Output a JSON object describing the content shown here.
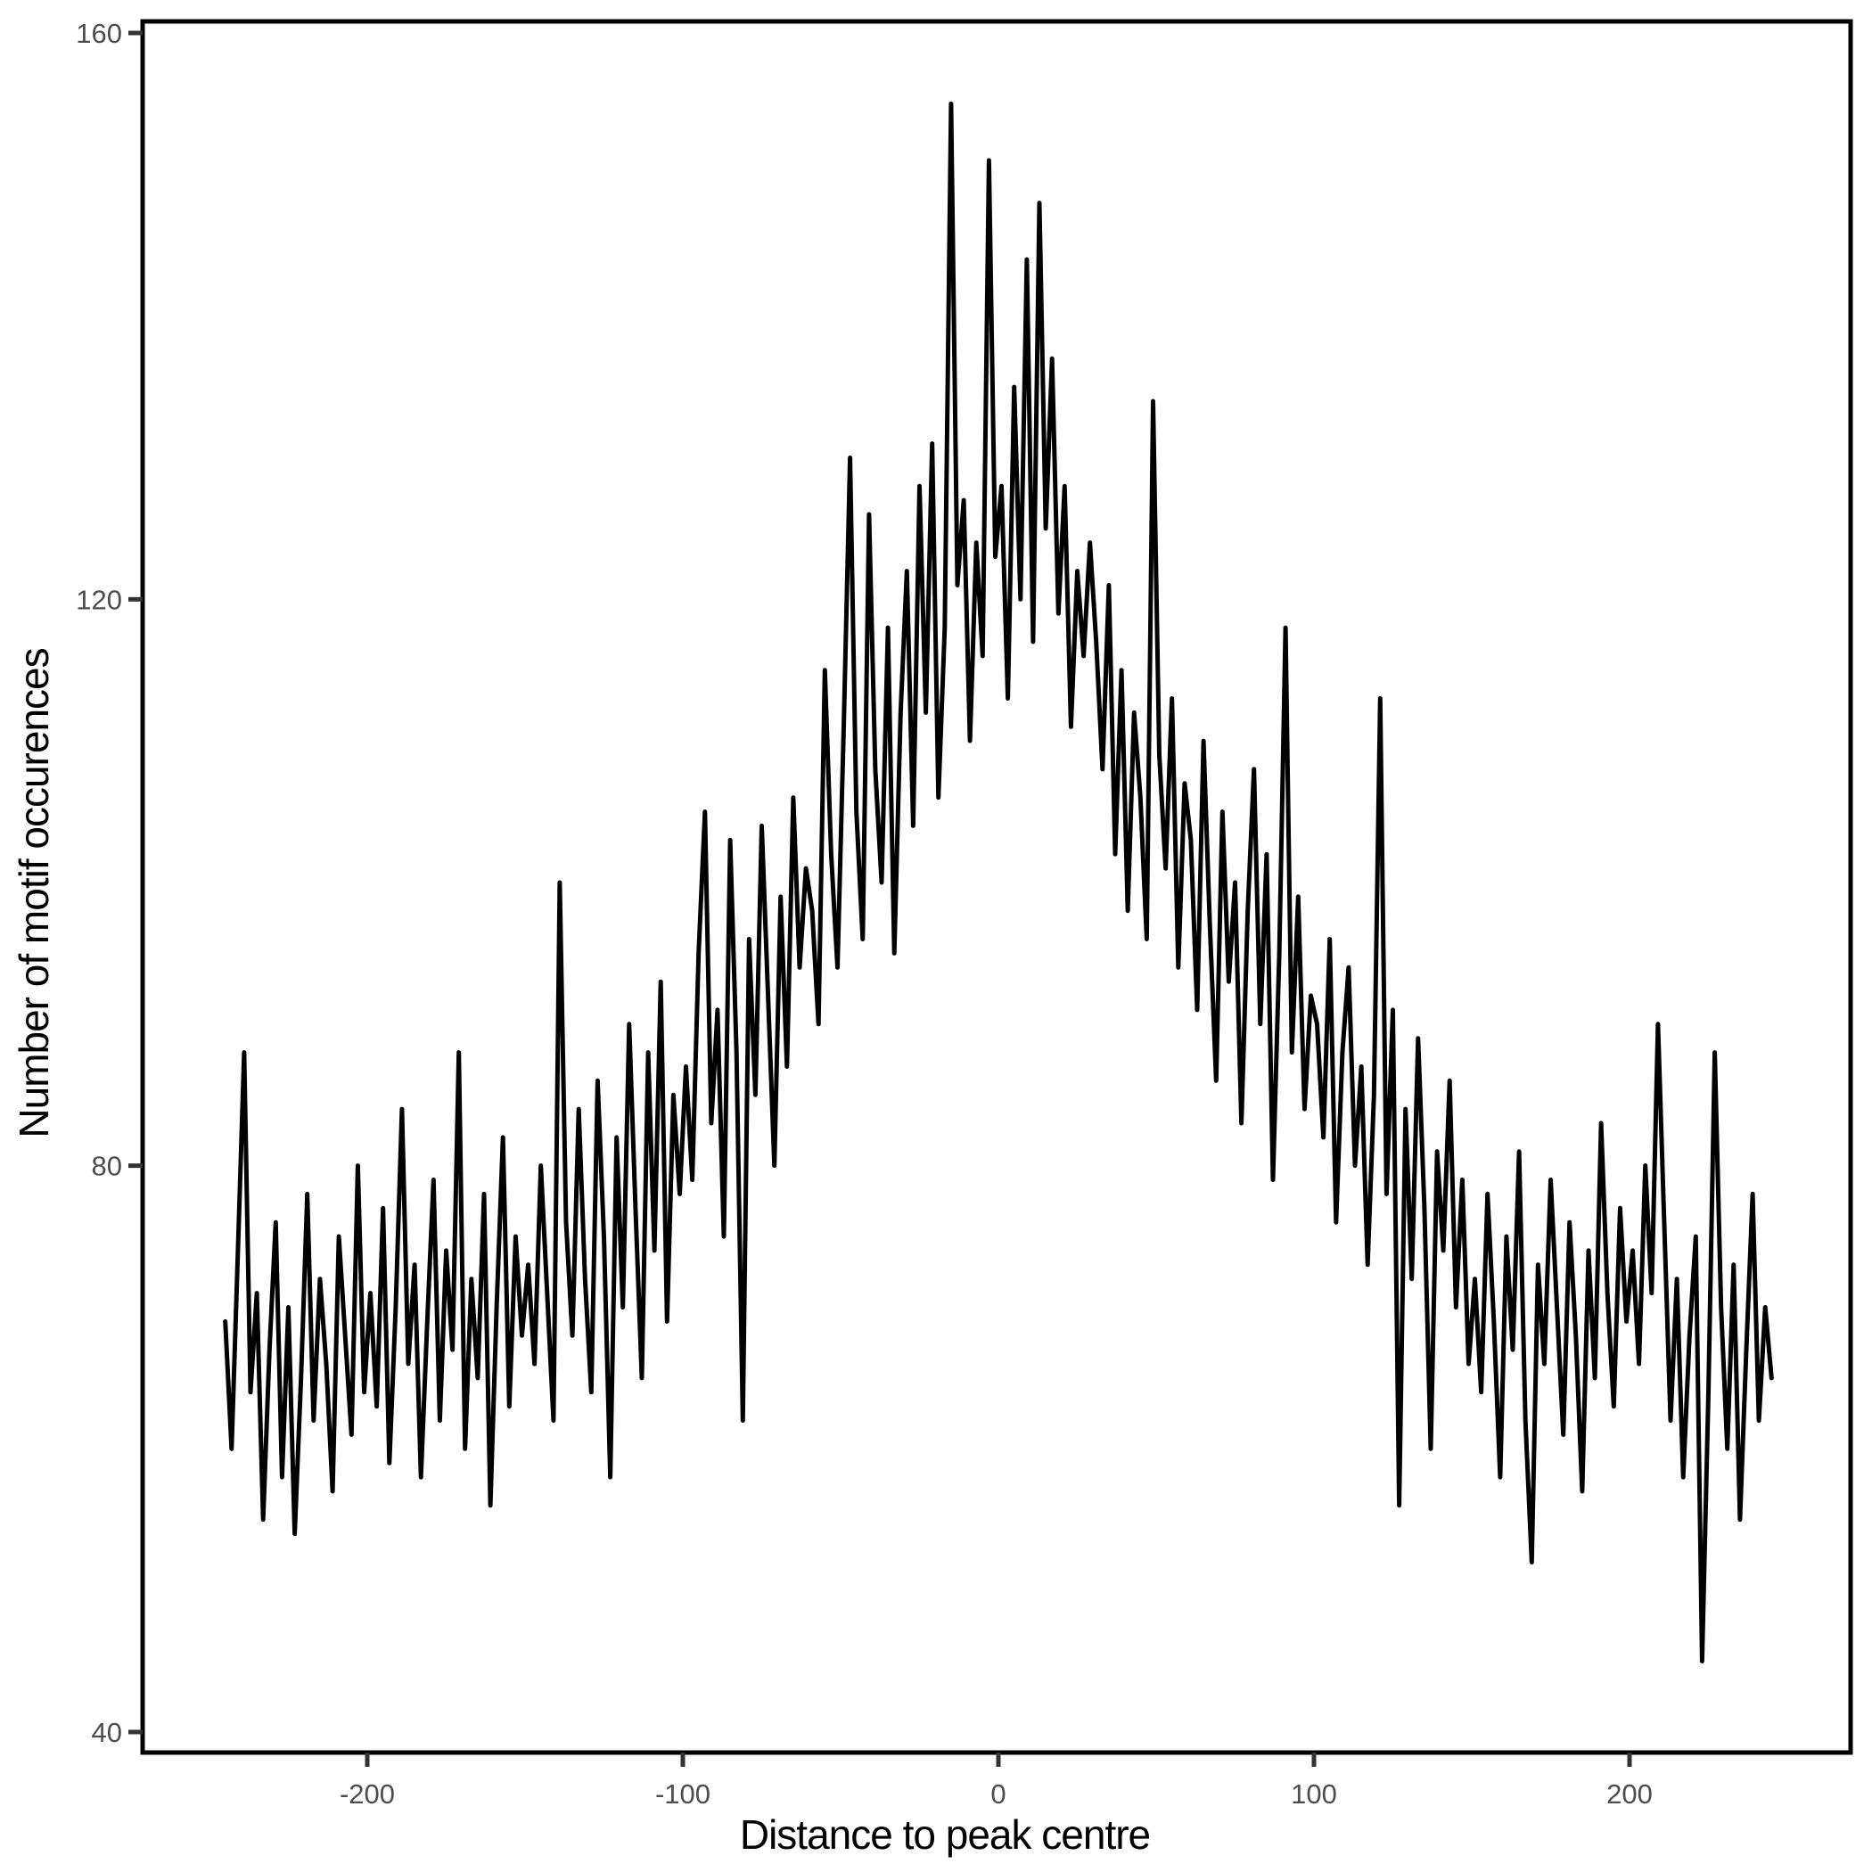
{
  "figure": {
    "background_color": "#ffffff",
    "panel_border_color": "#000000",
    "tick_mark_color": "#333333",
    "axis_text_color": "#4d4d4d",
    "axis_title_color": "#000000"
  },
  "chart_data": {
    "type": "line",
    "title": "",
    "xlabel": "Distance to peak centre",
    "ylabel": "Number of motif occurences",
    "line_color": "#000000",
    "grid": false,
    "legend": false,
    "x_ticks": [
      -200,
      -100,
      0,
      100,
      200
    ],
    "y_ticks": [
      40,
      80,
      120,
      160
    ],
    "xlim": [
      -271,
      270
    ],
    "ylim": [
      38.5,
      160.8
    ],
    "x_start": -245,
    "x_step": 2,
    "values": [
      69,
      60,
      74,
      88,
      64,
      71,
      55,
      67,
      76,
      58,
      70,
      54,
      65,
      78,
      62,
      72,
      66,
      57,
      75,
      68,
      61,
      80,
      64,
      71,
      63,
      77,
      59,
      70,
      84,
      66,
      73,
      58,
      69,
      79,
      62,
      74,
      67,
      88,
      60,
      72,
      65,
      78,
      56,
      70,
      82,
      63,
      75,
      68,
      73,
      66,
      80,
      71,
      62,
      100,
      76,
      68,
      84,
      72,
      64,
      86,
      75,
      58,
      82,
      70,
      90,
      77,
      65,
      88,
      74,
      93,
      69,
      85,
      78,
      87,
      79,
      95,
      105,
      83,
      91,
      75,
      103,
      88,
      62,
      96,
      85,
      104,
      92,
      80,
      99,
      87,
      106,
      94,
      101,
      98,
      90,
      115,
      102,
      94,
      111,
      130,
      105,
      96,
      126,
      108,
      100,
      118,
      95,
      112,
      122,
      104,
      128,
      112,
      131,
      106,
      118,
      155,
      121,
      127,
      110,
      124,
      116,
      151,
      123,
      128,
      113,
      135,
      120,
      144,
      117,
      148,
      125,
      137,
      119,
      128,
      111,
      122,
      116,
      124,
      117,
      108,
      121,
      102,
      115,
      98,
      112,
      106,
      96,
      134,
      109,
      101,
      113,
      94,
      107,
      103,
      91,
      110,
      97,
      86,
      105,
      93,
      100,
      83,
      98,
      108,
      90,
      102,
      79,
      95,
      118,
      88,
      99,
      84,
      92,
      90,
      82,
      96,
      76,
      88,
      94,
      80,
      87,
      73,
      85,
      113,
      78,
      91,
      56,
      84,
      72,
      89,
      77,
      60,
      81,
      74,
      86,
      70,
      79,
      66,
      72,
      64,
      78,
      69,
      58,
      75,
      67,
      81,
      62,
      52,
      73,
      66,
      79,
      70,
      61,
      76,
      68,
      57,
      74,
      65,
      83,
      71,
      63,
      77,
      69,
      74,
      66,
      80,
      71,
      90,
      76,
      62,
      72,
      58,
      68,
      75,
      45,
      64,
      88,
      70,
      60,
      73,
      55,
      67,
      78,
      62,
      70,
      65
    ]
  }
}
